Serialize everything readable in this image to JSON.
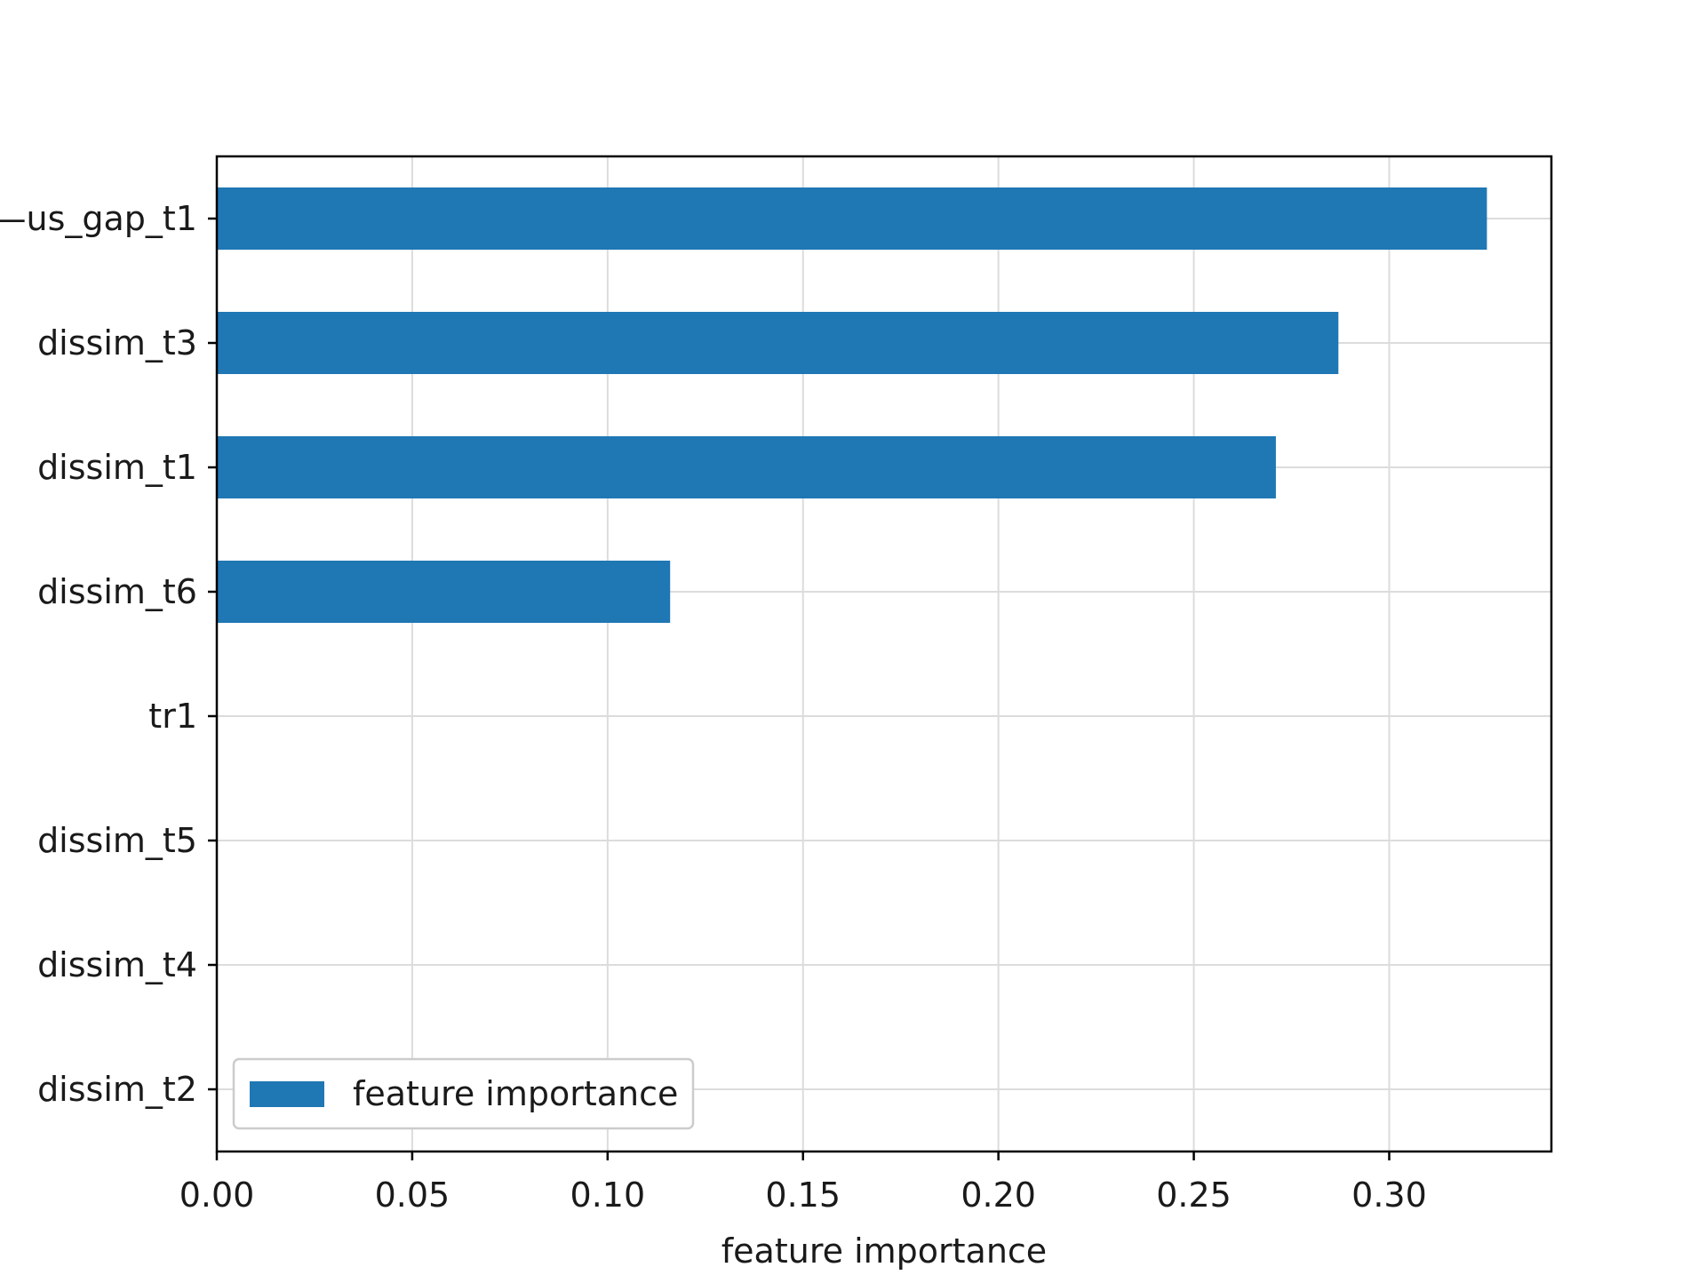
{
  "chart_data": {
    "type": "bar",
    "orientation": "horizontal",
    "title": "",
    "xlabel": "feature importance",
    "ylabel": "",
    "xlim": [
      0,
      0.3415
    ],
    "xticks": [
      0.0,
      0.05,
      0.1,
      0.15,
      0.2,
      0.25,
      0.3
    ],
    "xtick_labels": [
      "0.00",
      "0.05",
      "0.10",
      "0.15",
      "0.20",
      "0.25",
      "0.30"
    ],
    "grid": true,
    "legend": {
      "placement": "bottom-left",
      "entries": [
        "feature importance"
      ]
    },
    "categories": [
      "—us_gap_t1",
      "dissim_t3",
      "dissim_t1",
      "dissim_t6",
      "tr1",
      "dissim_t5",
      "dissim_t4",
      "dissim_t2"
    ],
    "series": [
      {
        "name": "feature importance",
        "color": "#1f77b4",
        "values": [
          0.325,
          0.287,
          0.271,
          0.116,
          0.0,
          0.0,
          0.0,
          0.0
        ]
      }
    ]
  }
}
